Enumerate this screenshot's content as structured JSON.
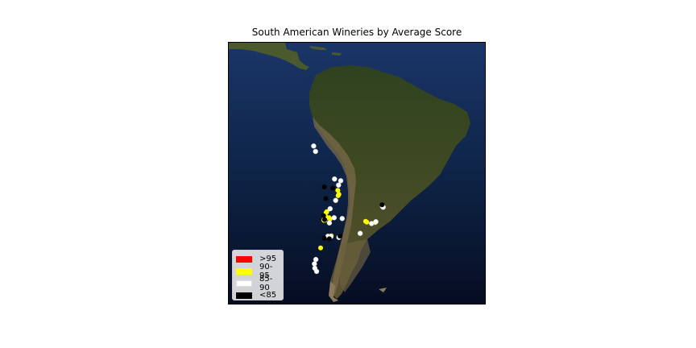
{
  "title": "South American Wineries by Average Score",
  "legend": [
    {
      "label": ">95",
      "color": "#ff0000"
    },
    {
      "label": "90-95",
      "color": "#ffff00"
    },
    {
      "label": "85-90",
      "color": "#ffffff"
    },
    {
      "label": "<85",
      "color": "#000000"
    }
  ],
  "map": {
    "basemap": "satellite imagery of South America",
    "ocean_color": "#0e2447",
    "land_color": "#3f4a22",
    "lon_range": [
      -95,
      -25
    ],
    "lat_range": [
      -57,
      15
    ]
  },
  "chart_data": {
    "type": "scatter",
    "title": "South American Wineries by Average Score",
    "xlabel": "",
    "ylabel": "",
    "x_unit": "longitude",
    "y_unit": "latitude",
    "series": [
      {
        "name": "90-95",
        "color": "#ffff00",
        "points": [
          [
            -65.2,
            -25.7
          ],
          [
            -64.9,
            -26.8
          ],
          [
            -65.1,
            -27.2
          ],
          [
            -68.2,
            -31.6
          ],
          [
            -68.4,
            -31.9
          ],
          [
            -68.5,
            -33.0
          ],
          [
            -68.8,
            -33.1
          ],
          [
            -68.6,
            -33.4
          ],
          [
            -68.9,
            -33.6
          ],
          [
            -69.0,
            -34.0
          ],
          [
            -68.7,
            -33.9
          ],
          [
            -67.6,
            -33.3
          ],
          [
            -67.3,
            -33.6
          ],
          [
            -57.6,
            -34.3
          ],
          [
            -57.3,
            -34.5
          ],
          [
            -55.0,
            -34.6
          ],
          [
            -69.9,
            -41.6
          ],
          [
            -67.0,
            -38.3
          ]
        ]
      },
      {
        "name": "85-90",
        "color": "#ffffff",
        "points": [
          [
            -71.8,
            -13.5
          ],
          [
            -71.3,
            -15.0
          ],
          [
            -66.1,
            -22.6
          ],
          [
            -64.4,
            -23.1
          ],
          [
            -65.0,
            -24.3
          ],
          [
            -65.8,
            -28.5
          ],
          [
            -67.3,
            -30.8
          ],
          [
            -66.2,
            -33.3
          ],
          [
            -67.5,
            -34.7
          ],
          [
            -67.9,
            -38.4
          ],
          [
            -64.0,
            -33.5
          ],
          [
            -64.9,
            -38.7
          ],
          [
            -56.0,
            -34.9
          ],
          [
            -54.8,
            -34.4
          ],
          [
            -53.0,
            -30.2
          ],
          [
            -52.8,
            -30.4
          ],
          [
            -59.1,
            -37.6
          ],
          [
            -67.1,
            -38.5
          ],
          [
            -71.2,
            -44.8
          ],
          [
            -71.6,
            -46.0
          ],
          [
            -71.5,
            -47.2
          ],
          [
            -71.0,
            -48.1
          ]
        ]
      },
      {
        "name": "<85",
        "color": "#000000",
        "points": [
          [
            -68.9,
            -24.8
          ],
          [
            -66.6,
            -25.1
          ],
          [
            -68.5,
            -28.0
          ],
          [
            -68.9,
            -38.9
          ],
          [
            -64.6,
            -38.4
          ],
          [
            -67.5,
            -39.1
          ],
          [
            -68.8,
            -33.8
          ],
          [
            -53.1,
            -29.7
          ],
          [
            -69.1,
            -32.7
          ]
        ]
      }
    ]
  }
}
